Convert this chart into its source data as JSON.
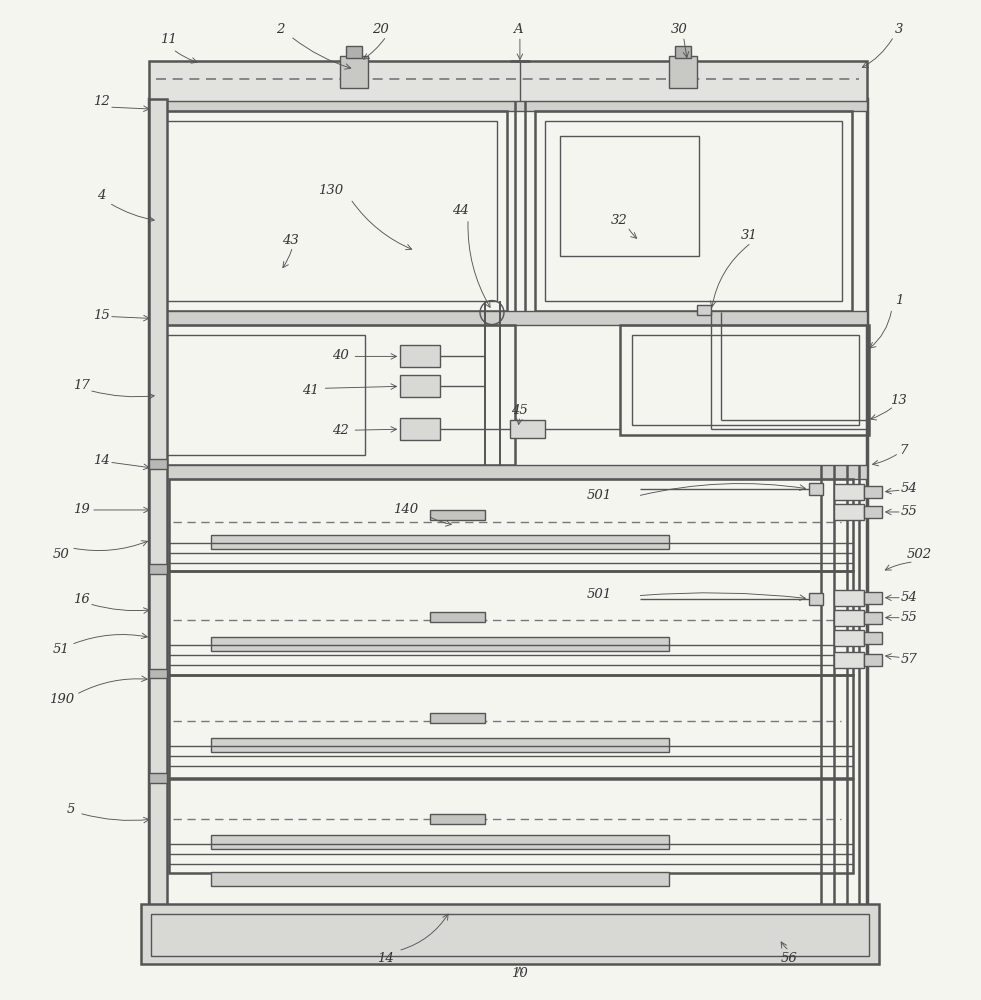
{
  "bg_color": "#f5f5f0",
  "line_color": "#555555",
  "dashed_color": "#777777",
  "label_color": "#333333",
  "fig_width": 9.81,
  "fig_height": 10.0
}
